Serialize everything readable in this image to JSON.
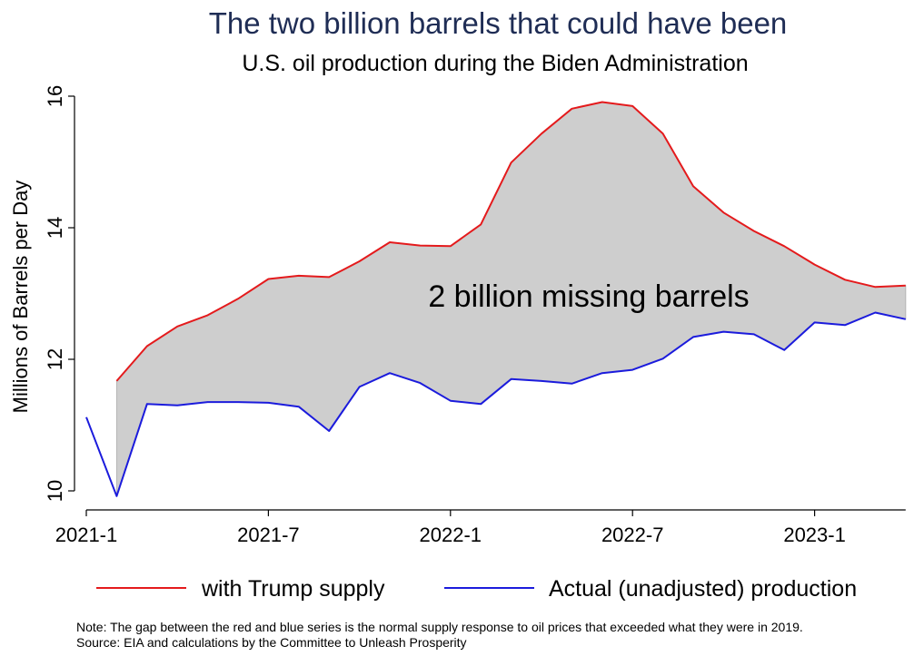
{
  "chart_data": {
    "type": "line",
    "title": "The two billion barrels that could have been",
    "subtitle": "U.S. oil production during the Biden Administration",
    "ylabel": "Millions of Barrels per Day",
    "xlabel": "",
    "ylim": [
      10,
      16
    ],
    "yticks": [
      "10",
      "12",
      "14",
      "16"
    ],
    "xticks": [
      {
        "label": "2021-1",
        "index": 0
      },
      {
        "label": "2021-7",
        "index": 6
      },
      {
        "label": "2022-1",
        "index": 12
      },
      {
        "label": "2022-7",
        "index": 18
      },
      {
        "label": "2023-1",
        "index": 24
      }
    ],
    "x": [
      "2021-1",
      "2021-2",
      "2021-3",
      "2021-4",
      "2021-5",
      "2021-6",
      "2021-7",
      "2021-8",
      "2021-9",
      "2021-10",
      "2021-11",
      "2021-12",
      "2022-1",
      "2022-2",
      "2022-3",
      "2022-4",
      "2022-5",
      "2022-6",
      "2022-7",
      "2022-8",
      "2022-9",
      "2022-10",
      "2022-11",
      "2022-12",
      "2023-1",
      "2023-2",
      "2023-3",
      "2023-4"
    ],
    "series": [
      {
        "name": "with Trump supply",
        "color": "#e41a1c",
        "values": [
          null,
          11.67,
          12.2,
          12.5,
          12.67,
          12.92,
          13.22,
          13.27,
          13.25,
          13.49,
          13.78,
          13.73,
          13.72,
          14.05,
          14.99,
          15.43,
          15.81,
          15.91,
          15.85,
          15.43,
          14.63,
          14.23,
          13.95,
          13.72,
          13.44,
          13.21,
          13.1,
          13.12
        ]
      },
      {
        "name": "Actual (unadjusted) production",
        "color": "#1b1bdc",
        "values": [
          11.12,
          9.92,
          11.32,
          11.3,
          11.35,
          11.35,
          11.34,
          11.28,
          10.91,
          11.58,
          11.79,
          11.64,
          11.37,
          11.32,
          11.7,
          11.67,
          11.63,
          11.79,
          11.84,
          12.01,
          12.34,
          12.42,
          12.38,
          12.14,
          12.56,
          12.52,
          12.71,
          12.61
        ]
      }
    ],
    "shaded_gap_color": "#cecece",
    "annotation": "2 billion missing barrels",
    "legend_position": "bottom",
    "grid": false
  },
  "note_line1": "Note: The gap between the red and blue series is the normal supply response to oil prices that exceeded what they were in 2019.",
  "note_line2": "Source: EIA and calculations by the Committee to Unleash Prosperity"
}
